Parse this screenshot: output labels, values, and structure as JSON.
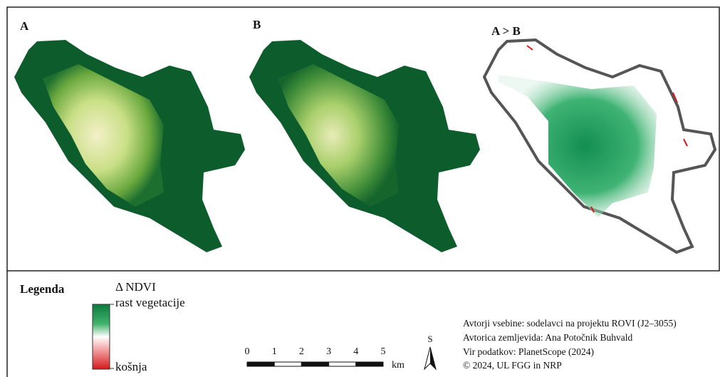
{
  "panels": [
    {
      "label": "A"
    },
    {
      "label": "B"
    },
    {
      "label": "A > B"
    }
  ],
  "legend": {
    "title": "Legenda",
    "variable": "Δ NDVI",
    "high": "rast vegetacije",
    "low": "košnja"
  },
  "scale": {
    "ticks": [
      0,
      1,
      2,
      3,
      4,
      5
    ],
    "unit": "km"
  },
  "north": "S",
  "credits": [
    "Avtorji vsebine: sodelavci na projektu ROVI (J2–3055)",
    "Avtorica zemljevida: Ana Potočnik Buhvald",
    "Vir podatkov: PlanetScope (2024)",
    "© 2024, UL FGG in NRP"
  ]
}
